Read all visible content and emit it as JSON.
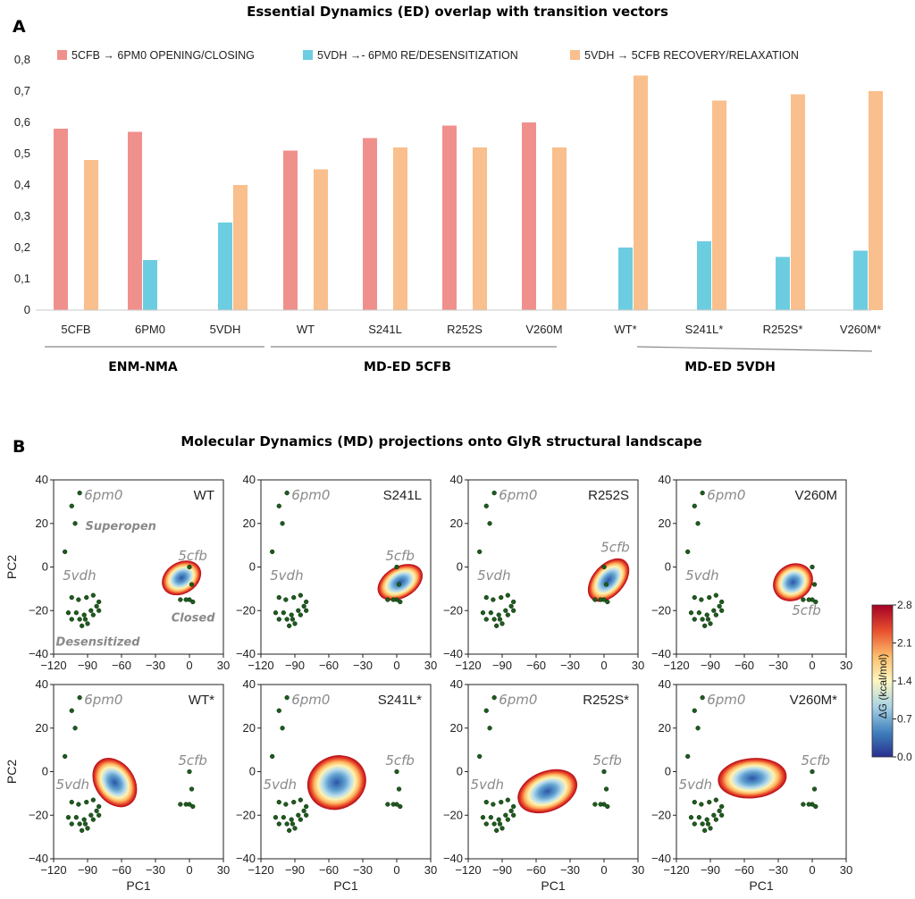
{
  "panel_a_letter": "A",
  "panel_b_letter": "B",
  "chart_data": [
    {
      "type": "bar",
      "title": "Essential Dynamics (ED) overlap with transition vectors",
      "ylim": [
        0,
        0.8
      ],
      "yticks": [
        "0",
        "0,1",
        "0,2",
        "0,3",
        "0,4",
        "0,5",
        "0,6",
        "0,7",
        "0,8"
      ],
      "categories": [
        "5CFB",
        "6PM0",
        "5VDH",
        "WT",
        "S241L",
        "R252S",
        "V260M",
        "WT*",
        "S241L*",
        "R252S*",
        "V260M*"
      ],
      "groups": [
        "ENM-NMA",
        "MD-ED 5CFB",
        "MD-ED 5VDH"
      ],
      "series": [
        {
          "name": "5CFB → 6PM0 OPENING/CLOSING",
          "color": "#f0908c",
          "values": [
            0.58,
            0.57,
            null,
            0.51,
            0.55,
            0.59,
            0.6,
            null,
            null,
            null,
            null
          ]
        },
        {
          "name": "5VDH →- 6PM0 RE/DESENSITIZATION",
          "color": "#6dcde0",
          "values": [
            null,
            0.16,
            0.28,
            null,
            null,
            null,
            null,
            0.2,
            0.22,
            0.17,
            0.19
          ]
        },
        {
          "name": "5VDH → 5CFB RECOVERY/RELAXATION",
          "color": "#f9bf8c",
          "values": [
            0.48,
            null,
            0.4,
            0.45,
            0.52,
            0.52,
            0.52,
            0.75,
            0.67,
            0.69,
            0.7
          ]
        }
      ]
    },
    {
      "type": "scatter",
      "title": "Molecular Dynamics (MD) projections onto GlyR structural landscape",
      "xlabel": "PC1",
      "ylabel": "PC2",
      "xlim": [
        -120,
        30
      ],
      "ylim": [
        -40,
        40
      ],
      "xticks": [
        "−120",
        "−90",
        "−60",
        "−30",
        "0",
        "30"
      ],
      "yticks": [
        "−40",
        "−20",
        "0",
        "20",
        "40"
      ],
      "colorbar": {
        "label": "ΔG (kcal/mol)",
        "ticks": [
          "2.8",
          "2.1",
          "1.4",
          "0.7",
          "0.0"
        ],
        "range": [
          0.0,
          2.8
        ]
      },
      "reference_points": [
        [
          -97,
          34
        ],
        [
          -104,
          28
        ],
        [
          -101,
          20
        ],
        [
          -110,
          7
        ],
        [
          -85,
          -13
        ],
        [
          -91,
          -14
        ],
        [
          -98,
          -15
        ],
        [
          -104,
          -14
        ],
        [
          -80,
          -16
        ],
        [
          -82,
          -18
        ],
        [
          -87,
          -20
        ],
        [
          -80,
          -20
        ],
        [
          -85,
          -22
        ],
        [
          -93,
          -22
        ],
        [
          -100,
          -21
        ],
        [
          -107,
          -21
        ],
        [
          -104,
          -24
        ],
        [
          -97,
          -24
        ],
        [
          -92,
          -24
        ],
        [
          -95,
          -27
        ],
        [
          -90,
          -26
        ],
        [
          0,
          0
        ],
        [
          2,
          -8
        ],
        [
          0,
          -15
        ],
        [
          -3,
          -15
        ],
        [
          -8,
          -15
        ],
        [
          3,
          -16
        ]
      ],
      "structure_labels": [
        "6pm0",
        "5vdh",
        "5cfb"
      ],
      "state_labels": {
        "superopen": "Superopen",
        "closed": "Closed",
        "desensitized": "Desensitized"
      },
      "panels": [
        {
          "name": "WT",
          "basin": {
            "cx": -7,
            "cy": -5,
            "rx": 18,
            "ry": 7,
            "angle_deg": -32
          }
        },
        {
          "name": "S241L",
          "basin": {
            "cx": 3,
            "cy": -7,
            "rx": 21,
            "ry": 7,
            "angle_deg": -30
          }
        },
        {
          "name": "R252S",
          "basin": {
            "cx": 4,
            "cy": -6,
            "rx": 22,
            "ry": 7,
            "angle_deg": -48
          }
        },
        {
          "name": "V260M",
          "basin": {
            "cx": -17,
            "cy": -7,
            "rx": 18,
            "ry": 8,
            "angle_deg": -35
          }
        },
        {
          "name": "WT*",
          "basin": {
            "cx": -66,
            "cy": -5,
            "rx": 17,
            "ry": 12,
            "angle_deg": -35
          }
        },
        {
          "name": "S241L*",
          "basin": {
            "cx": -53,
            "cy": -5,
            "rx": 26,
            "ry": 12,
            "angle_deg": -25
          }
        },
        {
          "name": "R252S*",
          "basin": {
            "cx": -50,
            "cy": -9,
            "rx": 27,
            "ry": 9,
            "angle_deg": -22
          }
        },
        {
          "name": "V260M*",
          "basin": {
            "cx": -53,
            "cy": -3,
            "rx": 30,
            "ry": 9,
            "angle_deg": -5
          }
        }
      ]
    }
  ]
}
